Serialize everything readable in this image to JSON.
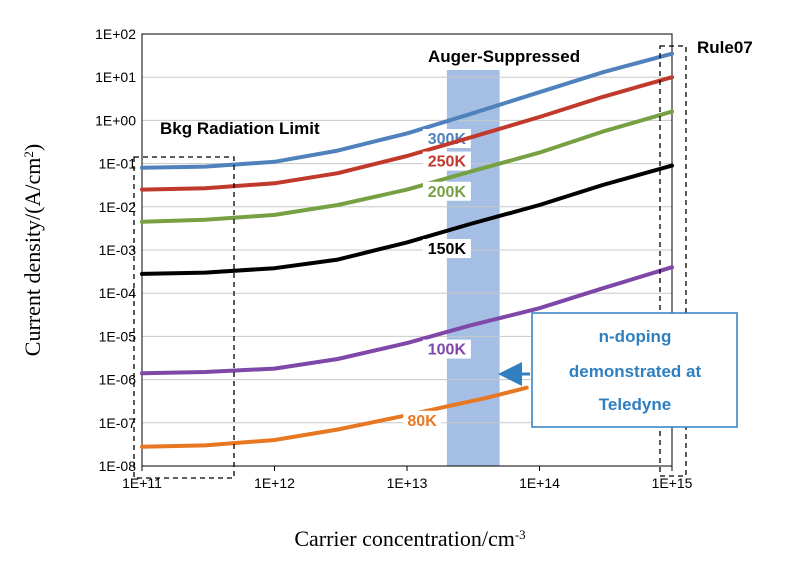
{
  "chart_data": {
    "type": "line",
    "title": "",
    "x_scale": "log",
    "y_scale": "log",
    "xlabel": "Carrier concentration/cm",
    "xlabel_sup": "-3",
    "ylabel": "Current density/(A/cm",
    "ylabel_sup": "2",
    "ylabel_end": ")",
    "xlim": [
      100000000000.0,
      1000000000000000.0
    ],
    "ylim": [
      1e-08,
      100
    ],
    "x_ticks": [
      {
        "value": 100000000000.0,
        "label": "1E+11"
      },
      {
        "value": 1000000000000.0,
        "label": "1E+12"
      },
      {
        "value": 10000000000000.0,
        "label": "1E+13"
      },
      {
        "value": 100000000000000.0,
        "label": "1E+14"
      },
      {
        "value": 1000000000000000.0,
        "label": "1E+15"
      }
    ],
    "y_ticks": [
      {
        "value": 100,
        "label": "1E+02"
      },
      {
        "value": 10,
        "label": "1E+01"
      },
      {
        "value": 1,
        "label": "1E+00"
      },
      {
        "value": 0.1,
        "label": "1E-01"
      },
      {
        "value": 0.01,
        "label": "1E-02"
      },
      {
        "value": 0.001,
        "label": "1E-03"
      },
      {
        "value": 0.0001,
        "label": "1E-04"
      },
      {
        "value": 1e-05,
        "label": "1E-05"
      },
      {
        "value": 1e-06,
        "label": "1E-06"
      },
      {
        "value": 1e-07,
        "label": "1E-07"
      },
      {
        "value": 1e-08,
        "label": "1E-08"
      }
    ],
    "grid": "horizontal",
    "series": [
      {
        "name": "300K",
        "color": "#4f81bd",
        "x": [
          100000000000.0,
          300000000000.0,
          1000000000000.0,
          3000000000000.0,
          10000000000000.0,
          30000000000000.0,
          100000000000000.0,
          300000000000000.0,
          1000000000000000.0
        ],
        "y": [
          0.08,
          0.085,
          0.11,
          0.2,
          0.5,
          1.4,
          4.5,
          13,
          35
        ],
        "label_at": [
          20000000000000.0,
          0.3
        ]
      },
      {
        "name": "250K",
        "color": "#c0392b",
        "x": [
          100000000000.0,
          300000000000.0,
          1000000000000.0,
          3000000000000.0,
          10000000000000.0,
          30000000000000.0,
          100000000000000.0,
          300000000000000.0,
          1000000000000000.0
        ],
        "y": [
          0.025,
          0.027,
          0.035,
          0.06,
          0.15,
          0.4,
          1.2,
          3.5,
          10
        ],
        "label_at": [
          20000000000000.0,
          0.09
        ]
      },
      {
        "name": "200K",
        "color": "#77a043",
        "x": [
          100000000000.0,
          300000000000.0,
          1000000000000.0,
          3000000000000.0,
          10000000000000.0,
          30000000000000.0,
          100000000000000.0,
          300000000000000.0,
          1000000000000000.0
        ],
        "y": [
          0.0045,
          0.005,
          0.0065,
          0.011,
          0.025,
          0.065,
          0.18,
          0.55,
          1.6
        ],
        "label_at": [
          20000000000000.0,
          0.018
        ]
      },
      {
        "name": "150K",
        "color": "#000000",
        "x": [
          100000000000.0,
          300000000000.0,
          1000000000000.0,
          3000000000000.0,
          10000000000000.0,
          30000000000000.0,
          100000000000000.0,
          300000000000000.0,
          1000000000000000.0
        ],
        "y": [
          0.00028,
          0.0003,
          0.00038,
          0.0006,
          0.0015,
          0.004,
          0.011,
          0.032,
          0.09
        ],
        "label_at": [
          20000000000000.0,
          0.00085
        ]
      },
      {
        "name": "100K",
        "color": "#7f47a8",
        "x": [
          100000000000.0,
          300000000000.0,
          1000000000000.0,
          3000000000000.0,
          10000000000000.0,
          30000000000000.0,
          100000000000000.0,
          300000000000000.0,
          1000000000000000.0
        ],
        "y": [
          1.4e-06,
          1.5e-06,
          1.8e-06,
          3e-06,
          7e-06,
          1.8e-05,
          4.5e-05,
          0.00013,
          0.0004
        ],
        "label_at": [
          20000000000000.0,
          4e-06
        ]
      },
      {
        "name": "80K",
        "color": "#e87722",
        "x": [
          100000000000.0,
          300000000000.0,
          1000000000000.0,
          3000000000000.0,
          10000000000000.0,
          20000000000000.0,
          40000000000000.0,
          80000000000000.0
        ],
        "y": [
          2.8e-08,
          3e-08,
          4e-08,
          7e-08,
          1.5e-07,
          2.4e-07,
          3.8e-07,
          6.5e-07
        ],
        "label_at": [
          13000000000000.0,
          9e-08
        ]
      }
    ],
    "annotations": {
      "bkg_label": "Bkg Radiation Limit",
      "auger_label": "Auger-Suppressed",
      "rule_label": "Rule07",
      "note_lines": [
        "n-doping",
        "demonstrated at",
        "Teledyne"
      ],
      "auger_band": {
        "x0": 20000000000000.0,
        "x1": 50000000000000.0,
        "color": "#9ab8e0"
      }
    }
  }
}
